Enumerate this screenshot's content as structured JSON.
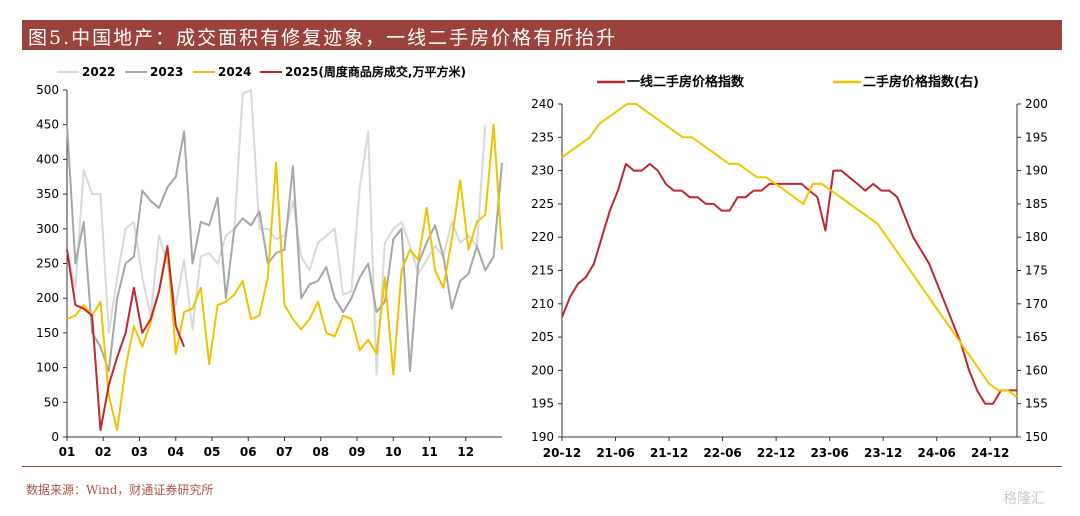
{
  "header": {
    "title": "图5.中国地产：成交面积有修复迹象，一线二手房价格有所抬升"
  },
  "footer": {
    "source": "数据来源：Wind，财通证券研究所",
    "watermark": "格隆汇"
  },
  "colors": {
    "title_bg": "#9b423c",
    "s2022": "#d9d9d9",
    "s2023": "#a6a6a6",
    "s2024": "#f2c200",
    "s2025": "#c0282e",
    "gold": "#f5c400",
    "red": "#c0282e"
  },
  "chart_data": [
    {
      "type": "line",
      "title": "",
      "xlabel": "",
      "ylabel": "",
      "ylim": [
        0,
        500
      ],
      "y_ticks": [
        "0",
        "50",
        "100",
        "150",
        "200",
        "250",
        "300",
        "350",
        "400",
        "450",
        "500"
      ],
      "x_ticks": [
        "01",
        "02",
        "03",
        "04",
        "05",
        "06",
        "07",
        "08",
        "09",
        "10",
        "11",
        "12"
      ],
      "legend_position": "top",
      "series": [
        {
          "name": "2022",
          "color": "#d9d9d9",
          "values": [
            270,
            215,
            385,
            350,
            350,
            150,
            230,
            300,
            310,
            230,
            175,
            290,
            250,
            190,
            255,
            155,
            260,
            265,
            250,
            290,
            300,
            495,
            500,
            300,
            300,
            285,
            290,
            340,
            260,
            240,
            280,
            290,
            300,
            205,
            210,
            360,
            440,
            90,
            280,
            300,
            310,
            275,
            235,
            255,
            275,
            260,
            310,
            280,
            290,
            275,
            450
          ]
        },
        {
          "name": "2023",
          "color": "#a6a6a6",
          "values": [
            450,
            250,
            310,
            150,
            130,
            95,
            200,
            250,
            260,
            355,
            340,
            330,
            360,
            375,
            440,
            250,
            310,
            305,
            345,
            200,
            300,
            315,
            305,
            325,
            250,
            265,
            270,
            390,
            200,
            220,
            225,
            245,
            200,
            180,
            200,
            230,
            250,
            180,
            195,
            285,
            300,
            95,
            250,
            280,
            305,
            260,
            185,
            225,
            235,
            275,
            240,
            260,
            395
          ]
        },
        {
          "name": "2024",
          "color": "#f2c200",
          "values": [
            170,
            175,
            190,
            175,
            195,
            60,
            10,
            100,
            160,
            130,
            165,
            210,
            270,
            120,
            180,
            185,
            215,
            105,
            190,
            195,
            205,
            225,
            170,
            175,
            230,
            395,
            190,
            170,
            155,
            170,
            195,
            150,
            145,
            175,
            170,
            125,
            140,
            120,
            230,
            90,
            240,
            270,
            255,
            330,
            240,
            215,
            285,
            370,
            270,
            310,
            320,
            450,
            270
          ]
        },
        {
          "name": "2025(周度商品房成交,万平方米)",
          "color": "#c0282e",
          "values": [
            270,
            190,
            185,
            175,
            10,
            75,
            115,
            150,
            215,
            150,
            170,
            210,
            275,
            160,
            130
          ]
        }
      ]
    },
    {
      "type": "line",
      "title": "",
      "xlabel": "",
      "ylabel": "",
      "ylim": [
        190,
        240
      ],
      "y2lim": [
        150,
        200
      ],
      "y_ticks": [
        "190",
        "195",
        "200",
        "205",
        "210",
        "215",
        "220",
        "225",
        "230",
        "235",
        "240"
      ],
      "y2_ticks": [
        "150",
        "155",
        "160",
        "165",
        "170",
        "175",
        "180",
        "185",
        "190",
        "195",
        "200"
      ],
      "x_ticks": [
        "20-12",
        "21-06",
        "21-12",
        "22-06",
        "22-12",
        "23-06",
        "23-12",
        "24-06",
        "24-12"
      ],
      "legend_position": "top",
      "series": [
        {
          "name": "一线二手房价格指数",
          "axis": "left",
          "color": "#c0282e",
          "values": [
            208,
            211,
            213,
            214,
            216,
            220,
            224,
            227,
            231,
            230,
            230,
            231,
            230,
            228,
            227,
            227,
            226,
            226,
            225,
            225,
            224,
            224,
            226,
            226,
            227,
            227,
            228,
            228,
            228,
            228,
            228,
            227,
            226,
            221,
            230,
            230,
            229,
            228,
            227,
            228,
            227,
            227,
            226,
            223,
            220,
            218,
            216,
            213,
            210,
            207,
            204,
            200,
            197,
            195,
            195,
            197,
            197,
            197
          ]
        },
        {
          "name": "二手房价格指数(右)",
          "axis": "right",
          "color": "#f5c400",
          "values": [
            192,
            193,
            194,
            195,
            197,
            198,
            199,
            200,
            200,
            199,
            198,
            197,
            196,
            195,
            195,
            194,
            193,
            192,
            191,
            191,
            190,
            189,
            189,
            188,
            187,
            186,
            185,
            188,
            188,
            187,
            186,
            185,
            184,
            183,
            182,
            180,
            178,
            176,
            174,
            172,
            170,
            168,
            166,
            164,
            162,
            160,
            158,
            157,
            157,
            156
          ]
        }
      ]
    }
  ]
}
